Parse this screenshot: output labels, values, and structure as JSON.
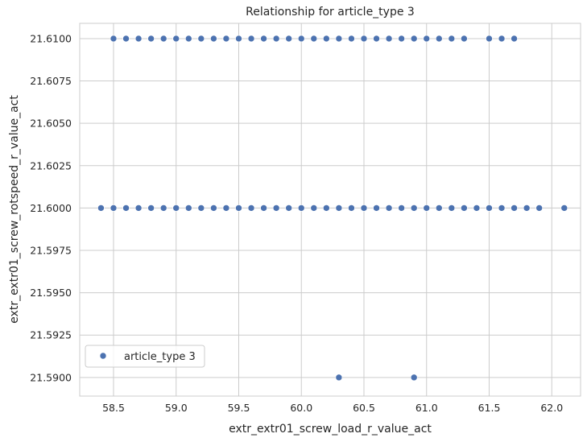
{
  "chart_data": {
    "type": "scatter",
    "title": "Relationship for article_type 3",
    "xlabel": "extr_extr01_screw_load_r_value_act",
    "ylabel": "extr_extr01_screw_rotspeed_r_value_act",
    "xlim": [
      58.23,
      62.23
    ],
    "ylim": [
      21.5889,
      21.6109
    ],
    "xticks": [
      "58.5",
      "59.0",
      "59.5",
      "60.0",
      "60.5",
      "61.0",
      "61.5",
      "62.0"
    ],
    "yticks": [
      "21.5900",
      "21.5925",
      "21.5950",
      "21.5975",
      "21.6000",
      "21.6025",
      "21.6050",
      "21.6075",
      "21.6100"
    ],
    "grid": true,
    "legend_position": "lower-left",
    "series": [
      {
        "name": "article_type 3",
        "color": "#4c72b0",
        "points": [
          [
            58.5,
            21.61
          ],
          [
            58.6,
            21.61
          ],
          [
            58.7,
            21.61
          ],
          [
            58.8,
            21.61
          ],
          [
            58.9,
            21.61
          ],
          [
            59.0,
            21.61
          ],
          [
            59.1,
            21.61
          ],
          [
            59.2,
            21.61
          ],
          [
            59.3,
            21.61
          ],
          [
            59.4,
            21.61
          ],
          [
            59.5,
            21.61
          ],
          [
            59.6,
            21.61
          ],
          [
            59.7,
            21.61
          ],
          [
            59.8,
            21.61
          ],
          [
            59.9,
            21.61
          ],
          [
            60.0,
            21.61
          ],
          [
            60.1,
            21.61
          ],
          [
            60.2,
            21.61
          ],
          [
            60.3,
            21.61
          ],
          [
            60.4,
            21.61
          ],
          [
            60.5,
            21.61
          ],
          [
            60.6,
            21.61
          ],
          [
            60.7,
            21.61
          ],
          [
            60.8,
            21.61
          ],
          [
            60.9,
            21.61
          ],
          [
            61.0,
            21.61
          ],
          [
            61.1,
            21.61
          ],
          [
            61.2,
            21.61
          ],
          [
            61.3,
            21.61
          ],
          [
            61.5,
            21.61
          ],
          [
            61.6,
            21.61
          ],
          [
            61.7,
            21.61
          ],
          [
            58.4,
            21.6
          ],
          [
            58.5,
            21.6
          ],
          [
            58.6,
            21.6
          ],
          [
            58.7,
            21.6
          ],
          [
            58.8,
            21.6
          ],
          [
            58.9,
            21.6
          ],
          [
            59.0,
            21.6
          ],
          [
            59.1,
            21.6
          ],
          [
            59.2,
            21.6
          ],
          [
            59.3,
            21.6
          ],
          [
            59.4,
            21.6
          ],
          [
            59.5,
            21.6
          ],
          [
            59.6,
            21.6
          ],
          [
            59.7,
            21.6
          ],
          [
            59.8,
            21.6
          ],
          [
            59.9,
            21.6
          ],
          [
            60.0,
            21.6
          ],
          [
            60.1,
            21.6
          ],
          [
            60.2,
            21.6
          ],
          [
            60.3,
            21.6
          ],
          [
            60.4,
            21.6
          ],
          [
            60.5,
            21.6
          ],
          [
            60.6,
            21.6
          ],
          [
            60.7,
            21.6
          ],
          [
            60.8,
            21.6
          ],
          [
            60.9,
            21.6
          ],
          [
            61.0,
            21.6
          ],
          [
            61.1,
            21.6
          ],
          [
            61.2,
            21.6
          ],
          [
            61.3,
            21.6
          ],
          [
            61.4,
            21.6
          ],
          [
            61.5,
            21.6
          ],
          [
            61.6,
            21.6
          ],
          [
            61.7,
            21.6
          ],
          [
            61.8,
            21.6
          ],
          [
            61.9,
            21.6
          ],
          [
            62.1,
            21.6
          ],
          [
            60.3,
            21.59
          ],
          [
            60.9,
            21.59
          ]
        ]
      }
    ]
  }
}
